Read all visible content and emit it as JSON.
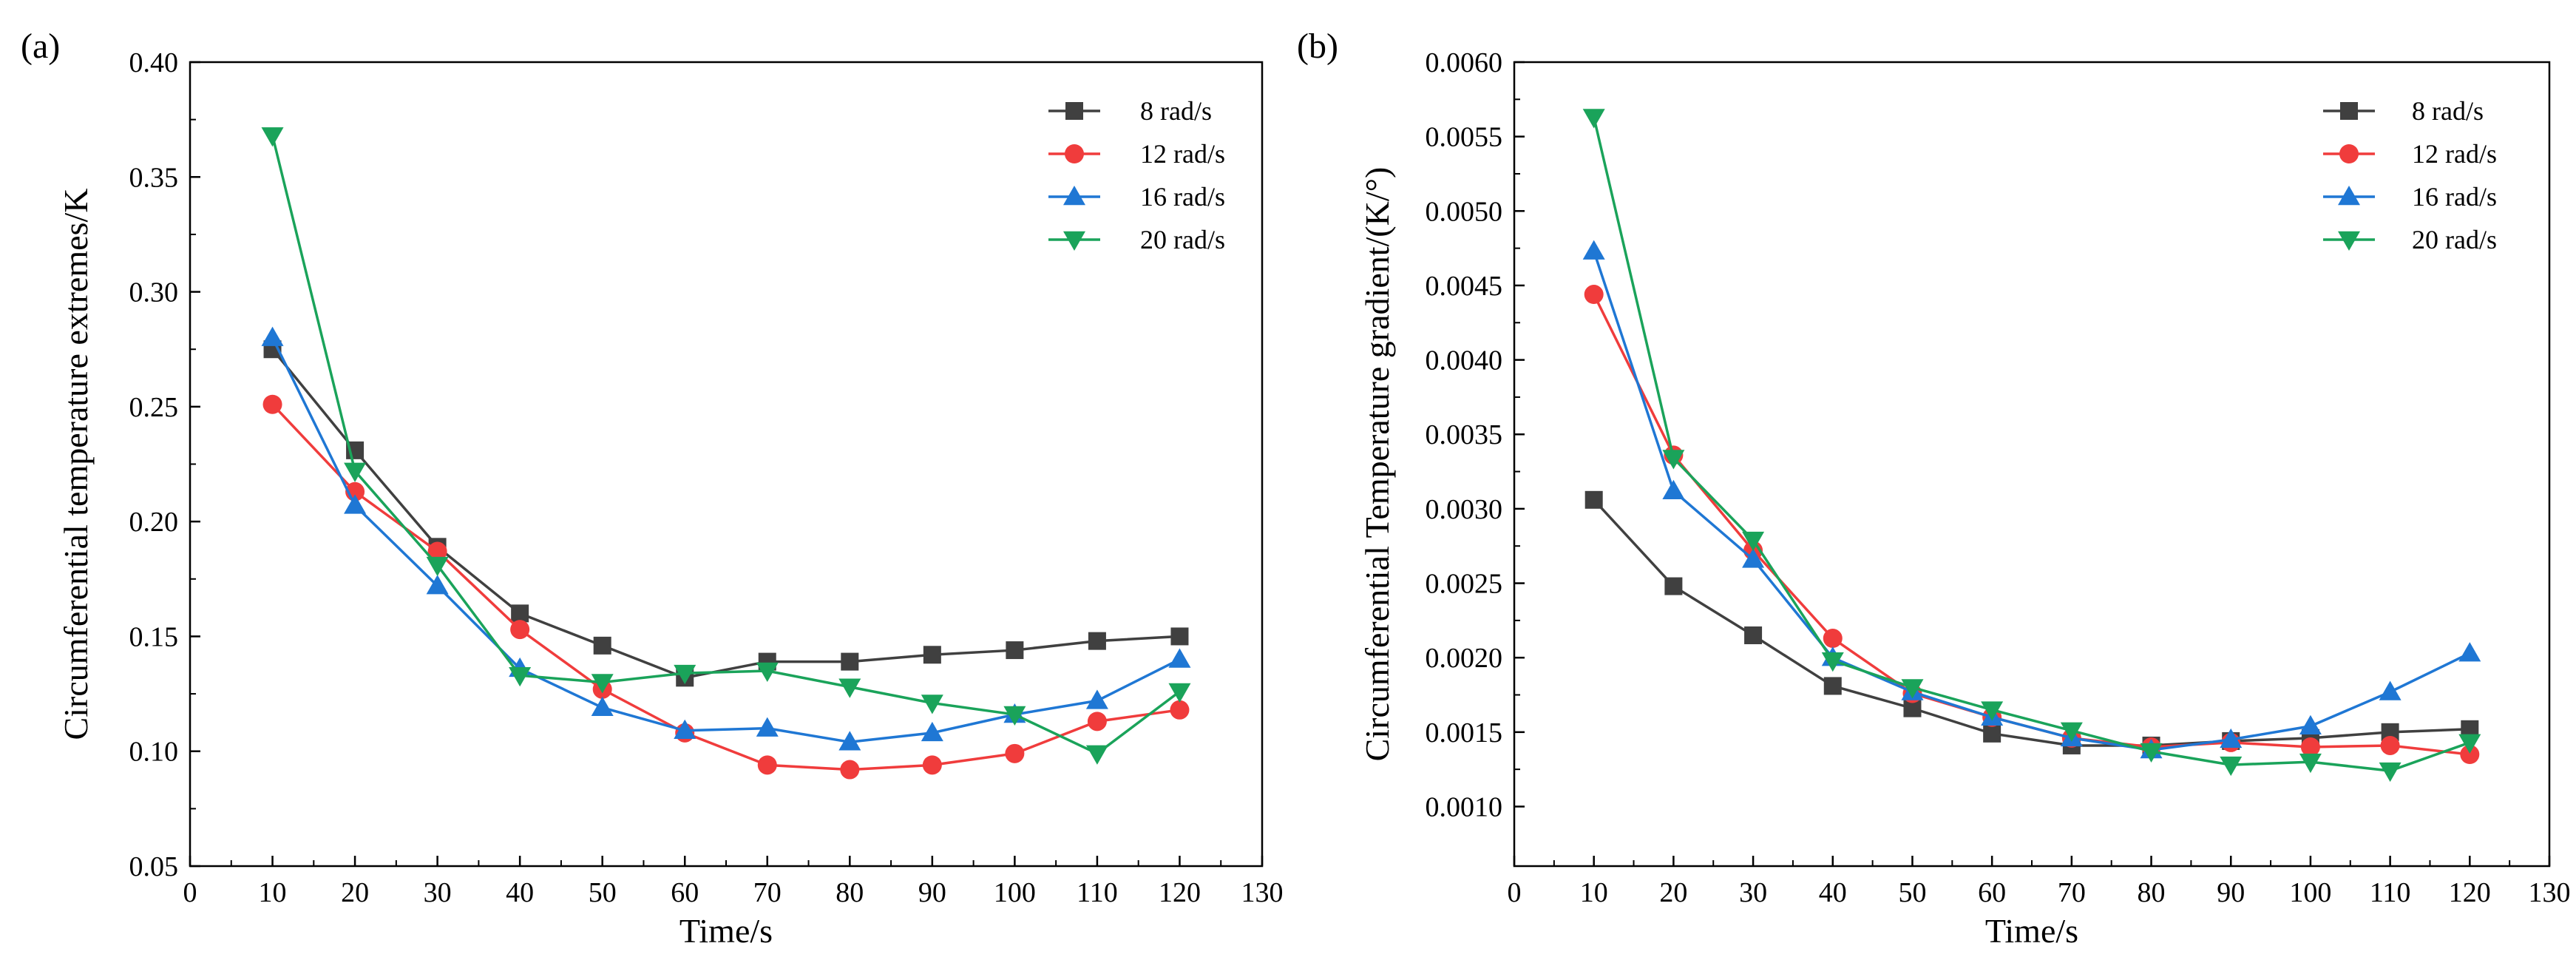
{
  "figure": {
    "panels": [
      "(a)",
      "(b)"
    ]
  },
  "chart_data": [
    {
      "type": "line",
      "panel_label": "(a)",
      "title": "",
      "xlabel": "Time/s",
      "ylabel": "Circumferential temperature extremes/K",
      "xlim": [
        0,
        130
      ],
      "ylim": [
        0.05,
        0.4
      ],
      "xticks": [
        0,
        10,
        20,
        30,
        40,
        50,
        60,
        70,
        80,
        90,
        100,
        110,
        120,
        130
      ],
      "yticks": [
        0.05,
        0.1,
        0.15,
        0.2,
        0.25,
        0.3,
        0.35,
        0.4
      ],
      "ytick_labels": [
        "0.05",
        "0.10",
        "0.15",
        "0.20",
        "0.25",
        "0.30",
        "0.35",
        "0.40"
      ],
      "grid": false,
      "legend_position": "top-right",
      "x": [
        10,
        20,
        30,
        40,
        50,
        60,
        70,
        80,
        90,
        100,
        110,
        120
      ],
      "series": [
        {
          "name": "8 rad/s",
          "marker": "square",
          "color": "#404040",
          "values": [
            0.275,
            0.231,
            0.189,
            0.16,
            0.146,
            0.132,
            0.139,
            0.139,
            0.142,
            0.144,
            0.148,
            0.15
          ]
        },
        {
          "name": "12 rad/s",
          "marker": "circle",
          "color": "#f03c3c",
          "values": [
            0.251,
            0.213,
            0.187,
            0.153,
            0.127,
            0.108,
            0.094,
            0.092,
            0.094,
            0.099,
            0.113,
            0.118
          ]
        },
        {
          "name": "16 rad/s",
          "marker": "triangle-up",
          "color": "#1f77d4",
          "values": [
            0.28,
            0.207,
            0.172,
            0.136,
            0.119,
            0.109,
            0.11,
            0.104,
            0.108,
            0.116,
            0.122,
            0.14
          ]
        },
        {
          "name": "20 rad/s",
          "marker": "triangle-down",
          "color": "#1aa35a",
          "values": [
            0.368,
            0.222,
            0.181,
            0.133,
            0.13,
            0.134,
            0.135,
            0.128,
            0.121,
            0.116,
            0.099,
            0.126
          ]
        }
      ]
    },
    {
      "type": "line",
      "panel_label": "(b)",
      "title": "",
      "xlabel": "Time/s",
      "ylabel": "Circumferential Temperature gradient/(K/°)",
      "xlim": [
        0,
        130
      ],
      "ylim": [
        0.0006,
        0.006
      ],
      "xticks": [
        0,
        10,
        20,
        30,
        40,
        50,
        60,
        70,
        80,
        90,
        100,
        110,
        120,
        130
      ],
      "yticks": [
        0.001,
        0.0015,
        0.002,
        0.0025,
        0.003,
        0.0035,
        0.004,
        0.0045,
        0.005,
        0.0055,
        0.006
      ],
      "ytick_labels": [
        "0.0010",
        "0.0015",
        "0.0020",
        "0.0025",
        "0.0030",
        "0.0035",
        "0.0040",
        "0.0045",
        "0.0050",
        "0.0055",
        "0.0060"
      ],
      "grid": false,
      "legend_position": "top-right",
      "x": [
        10,
        20,
        30,
        40,
        50,
        60,
        70,
        80,
        90,
        100,
        110,
        120
      ],
      "series": [
        {
          "name": "8 rad/s",
          "marker": "square",
          "color": "#404040",
          "values": [
            0.00306,
            0.00248,
            0.00215,
            0.00181,
            0.00166,
            0.00149,
            0.00141,
            0.00141,
            0.00144,
            0.00146,
            0.0015,
            0.00152
          ]
        },
        {
          "name": "12 rad/s",
          "marker": "circle",
          "color": "#f03c3c",
          "values": [
            0.00444,
            0.00336,
            0.00272,
            0.00213,
            0.00176,
            0.0016,
            0.00146,
            0.0014,
            0.00143,
            0.0014,
            0.00141,
            0.00135
          ]
        },
        {
          "name": "16 rad/s",
          "marker": "triangle-up",
          "color": "#1f77d4",
          "values": [
            0.00473,
            0.00312,
            0.00266,
            0.002,
            0.00177,
            0.0016,
            0.00146,
            0.00138,
            0.00145,
            0.00154,
            0.00177,
            0.00203
          ]
        },
        {
          "name": "20 rad/s",
          "marker": "triangle-down",
          "color": "#1aa35a",
          "values": [
            0.00563,
            0.00334,
            0.00279,
            0.00198,
            0.0018,
            0.00165,
            0.00151,
            0.00137,
            0.00128,
            0.0013,
            0.00124,
            0.00143
          ]
        }
      ]
    }
  ]
}
